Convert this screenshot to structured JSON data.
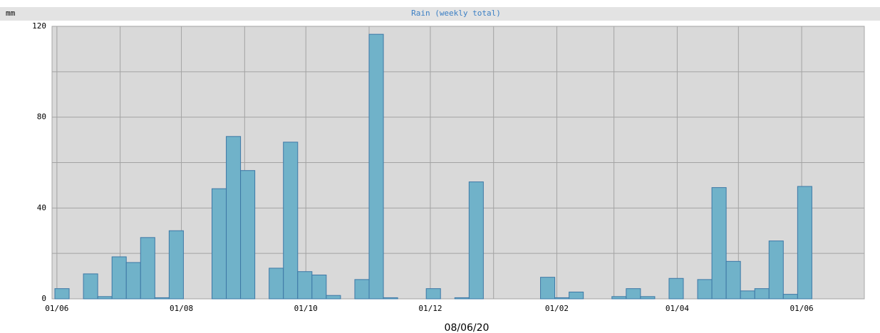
{
  "chart_data": {
    "type": "histogram",
    "title": "Rain (weekly total)",
    "ylabel": "mm",
    "xlabel": "08/06/20",
    "bins": [
      -1,
      6,
      13,
      20,
      27,
      34,
      41,
      48,
      55,
      62,
      69,
      76,
      83,
      90,
      97,
      104,
      111,
      118,
      125,
      132,
      139,
      146,
      153,
      160,
      167,
      174,
      181,
      188,
      195,
      202,
      209,
      216,
      223,
      230,
      237,
      244,
      251,
      258,
      265,
      272,
      279,
      286,
      293,
      300,
      307,
      314,
      321,
      328,
      335,
      342,
      349,
      356,
      363,
      370,
      377
    ],
    "values": [
      4.5,
      0,
      11,
      1,
      18.5,
      16,
      27,
      0.5,
      30,
      0,
      0,
      48.5,
      71.5,
      56.5,
      0,
      13.5,
      69,
      12,
      10.5,
      1.5,
      0,
      8.5,
      116.5,
      0.5,
      0,
      0,
      4.5,
      0,
      0.5,
      51.5,
      0,
      0,
      0,
      0,
      9.5,
      0.5,
      3,
      0,
      0,
      1,
      4.5,
      1,
      0,
      9,
      0,
      8.5,
      49,
      16.5,
      3.5,
      4.5,
      25.5,
      2,
      49.5,
      0
    ],
    "color": "#70b2c9",
    "edge_color": "#3d78a6",
    "xlim": [
      -2.4,
      395.7
    ],
    "xticks": [
      {
        "value": 0,
        "label": "01/06"
      },
      {
        "value": 61,
        "label": "01/08"
      },
      {
        "value": 122,
        "label": "01/10"
      },
      {
        "value": 183,
        "label": "01/12"
      },
      {
        "value": 245,
        "label": "01/02"
      },
      {
        "value": 304,
        "label": "01/04"
      },
      {
        "value": 365,
        "label": "01/06"
      }
    ],
    "minor_xticks": [
      31,
      92,
      153,
      214,
      273,
      334
    ],
    "ylim": [
      0,
      120
    ],
    "yticks": [
      0,
      40,
      80,
      120
    ],
    "minor_yticks": [
      20,
      60,
      100
    ],
    "grid": true
  }
}
